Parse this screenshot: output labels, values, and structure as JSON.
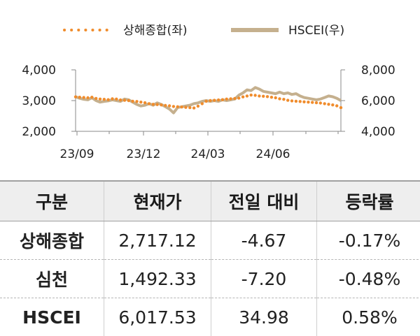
{
  "chart_data": {
    "type": "line",
    "x_ticks": [
      "23/09",
      "23/12",
      "24/03",
      "24/06"
    ],
    "y_left": {
      "ticks": [
        "4,000",
        "3,000",
        "2,000"
      ],
      "range": [
        2000,
        4000
      ]
    },
    "y_right": {
      "ticks": [
        "8,000",
        "6,000",
        "4,000"
      ],
      "range": [
        4000,
        8000
      ]
    },
    "x_range": [
      0,
      65
    ],
    "series": [
      {
        "name": "상해종합(좌)",
        "axis": "left",
        "style": "dotted",
        "color": "#f08c2c",
        "x": [
          0,
          1,
          2,
          3,
          4,
          5,
          6,
          7,
          8,
          9,
          10,
          11,
          12,
          13,
          14,
          15,
          16,
          17,
          18,
          19,
          20,
          21,
          22,
          23,
          24,
          25,
          26,
          27,
          28,
          29,
          30,
          31,
          32,
          33,
          34,
          35,
          36,
          37,
          38,
          39,
          40,
          41,
          42,
          43,
          44,
          45,
          46,
          47,
          48,
          49,
          50,
          51,
          52,
          53,
          54,
          55,
          56,
          57,
          58,
          59,
          60,
          61,
          62,
          63,
          64,
          65
        ],
        "y": [
          3120,
          3110,
          3100,
          3090,
          3110,
          3070,
          3050,
          3040,
          3030,
          3060,
          3050,
          3020,
          3010,
          3000,
          2980,
          2970,
          2950,
          2930,
          2900,
          2880,
          2870,
          2860,
          2840,
          2830,
          2810,
          2800,
          2790,
          2780,
          2770,
          2760,
          2820,
          2900,
          2980,
          3000,
          3010,
          3020,
          3030,
          3050,
          3060,
          3070,
          3080,
          3120,
          3150,
          3180,
          3170,
          3150,
          3140,
          3130,
          3110,
          3090,
          3060,
          3040,
          3010,
          2990,
          2980,
          2970,
          2960,
          2950,
          2940,
          2930,
          2920,
          2900,
          2880,
          2860,
          2830,
          2770
        ]
      },
      {
        "name": "HSCEI(우)",
        "axis": "right",
        "style": "solid",
        "color": "#c5b08e",
        "x": [
          0,
          1,
          2,
          3,
          4,
          5,
          6,
          7,
          8,
          9,
          10,
          11,
          12,
          13,
          14,
          15,
          16,
          17,
          18,
          19,
          20,
          21,
          22,
          23,
          24,
          25,
          26,
          27,
          28,
          29,
          30,
          31,
          32,
          33,
          34,
          35,
          36,
          37,
          38,
          39,
          40,
          41,
          42,
          43,
          44,
          45,
          46,
          47,
          48,
          49,
          50,
          51,
          52,
          53,
          54,
          55,
          56,
          57,
          58,
          59,
          60,
          61,
          62,
          63,
          64,
          65
        ],
        "y": [
          6250,
          6150,
          6080,
          6050,
          6180,
          6000,
          5900,
          5950,
          5980,
          6050,
          6000,
          5950,
          6100,
          6050,
          5900,
          5750,
          5650,
          5700,
          5800,
          5700,
          5850,
          5750,
          5600,
          5450,
          5200,
          5550,
          5600,
          5650,
          5700,
          5800,
          5850,
          5950,
          6000,
          5950,
          6000,
          5950,
          6050,
          6000,
          6050,
          6100,
          6350,
          6500,
          6700,
          6650,
          6850,
          6750,
          6600,
          6550,
          6500,
          6450,
          6550,
          6450,
          6500,
          6400,
          6450,
          6300,
          6200,
          6150,
          6100,
          6050,
          6100,
          6200,
          6300,
          6250,
          6150,
          6000
        ]
      }
    ]
  },
  "table": {
    "headers": [
      "구분",
      "현재가",
      "전일 대비",
      "등락률"
    ],
    "rows": [
      [
        "상해종합",
        "2,717.12",
        "-4.67",
        "-0.17%"
      ],
      [
        "심천",
        "1,492.33",
        "-7.20",
        "-0.48%"
      ],
      [
        "HSCEI",
        "6,017.53",
        "34.98",
        "0.58%"
      ]
    ]
  }
}
